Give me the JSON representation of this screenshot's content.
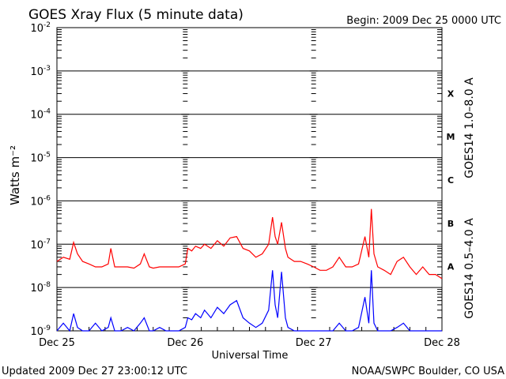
{
  "chart_data": {
    "type": "line",
    "title": "GOES Xray Flux (5 minute data)",
    "begin": "Begin:  2009 Dec 25 0000 UTC",
    "xlabel": "Universal Time",
    "ylabel": "Watts m⁻²",
    "y_scale": "log",
    "ylim": [
      1e-09,
      0.01
    ],
    "y_ticks": [
      {
        "base": "10",
        "exp": "-2"
      },
      {
        "base": "10",
        "exp": "-3"
      },
      {
        "base": "10",
        "exp": "-4"
      },
      {
        "base": "10",
        "exp": "-5"
      },
      {
        "base": "10",
        "exp": "-6"
      },
      {
        "base": "10",
        "exp": "-7"
      },
      {
        "base": "10",
        "exp": "-8"
      },
      {
        "base": "10",
        "exp": "-9"
      }
    ],
    "x_range_days": [
      0,
      3
    ],
    "x_ticks": [
      "Dec 25",
      "Dec 26",
      "Dec 27",
      "Dec 28"
    ],
    "flare_classes": [
      "X",
      "M",
      "C",
      "B",
      "A"
    ],
    "grid": true,
    "series": [
      {
        "name": "GOES14 1.0–8.0 A",
        "color": "#ff0000",
        "x": [
          0.0,
          0.05,
          0.1,
          0.13,
          0.16,
          0.2,
          0.25,
          0.3,
          0.35,
          0.4,
          0.42,
          0.45,
          0.5,
          0.55,
          0.6,
          0.65,
          0.68,
          0.72,
          0.75,
          0.8,
          0.85,
          0.9,
          0.95,
          1.0,
          1.02,
          1.05,
          1.08,
          1.12,
          1.15,
          1.2,
          1.25,
          1.3,
          1.35,
          1.4,
          1.45,
          1.5,
          1.55,
          1.6,
          1.65,
          1.68,
          1.7,
          1.72,
          1.75,
          1.78,
          1.8,
          1.85,
          1.9,
          1.95,
          2.0,
          2.05,
          2.1,
          2.15,
          2.2,
          2.25,
          2.3,
          2.35,
          2.4,
          2.43,
          2.45,
          2.47,
          2.5,
          2.55,
          2.6,
          2.65,
          2.7,
          2.75,
          2.8,
          2.85,
          2.9,
          2.95,
          3.0
        ],
        "y": [
          4e-08,
          5e-08,
          4.5e-08,
          1.1e-07,
          6e-08,
          4e-08,
          3.5e-08,
          3e-08,
          3e-08,
          3.5e-08,
          8e-08,
          3e-08,
          3e-08,
          3e-08,
          2.8e-08,
          3.5e-08,
          6e-08,
          3e-08,
          2.8e-08,
          3e-08,
          3e-08,
          3e-08,
          3e-08,
          3.5e-08,
          8e-08,
          7e-08,
          9e-08,
          8e-08,
          1e-07,
          8e-08,
          1.2e-07,
          9e-08,
          1.4e-07,
          1.5e-07,
          8e-08,
          7e-08,
          5e-08,
          6e-08,
          1e-07,
          4.2e-07,
          1.5e-07,
          1e-07,
          3.2e-07,
          8e-08,
          5e-08,
          4e-08,
          4e-08,
          3.5e-08,
          3e-08,
          2.5e-08,
          2.5e-08,
          3e-08,
          5e-08,
          3e-08,
          3e-08,
          3.5e-08,
          1.5e-07,
          5e-08,
          6.5e-07,
          6e-08,
          3e-08,
          2.5e-08,
          2e-08,
          4e-08,
          5e-08,
          3e-08,
          2e-08,
          3e-08,
          2e-08,
          2e-08,
          1.6e-08
        ]
      },
      {
        "name": "GOES14 0.5–4.0 A",
        "color": "#0000ff",
        "x": [
          0.0,
          0.05,
          0.1,
          0.13,
          0.16,
          0.2,
          0.25,
          0.3,
          0.35,
          0.4,
          0.42,
          0.45,
          0.5,
          0.55,
          0.6,
          0.65,
          0.68,
          0.72,
          0.75,
          0.8,
          0.85,
          0.9,
          0.95,
          1.0,
          1.02,
          1.05,
          1.08,
          1.12,
          1.15,
          1.2,
          1.25,
          1.3,
          1.35,
          1.4,
          1.45,
          1.5,
          1.55,
          1.6,
          1.65,
          1.68,
          1.7,
          1.72,
          1.75,
          1.78,
          1.8,
          1.85,
          1.9,
          1.95,
          2.0,
          2.05,
          2.1,
          2.15,
          2.2,
          2.25,
          2.3,
          2.35,
          2.4,
          2.43,
          2.45,
          2.47,
          2.5,
          2.55,
          2.6,
          2.65,
          2.7,
          2.75,
          2.8,
          2.85,
          2.9,
          2.95,
          3.0
        ],
        "y": [
          1e-09,
          1.5e-09,
          1e-09,
          2.5e-09,
          1.2e-09,
          1e-09,
          1e-09,
          1.5e-09,
          1e-09,
          1.2e-09,
          2e-09,
          1e-09,
          1e-09,
          1.2e-09,
          1e-09,
          1.5e-09,
          2e-09,
          1e-09,
          1e-09,
          1.2e-09,
          1e-09,
          1e-09,
          1e-09,
          1.2e-09,
          2e-09,
          1.8e-09,
          2.5e-09,
          2e-09,
          3e-09,
          2e-09,
          3.5e-09,
          2.5e-09,
          4e-09,
          5e-09,
          2e-09,
          1.5e-09,
          1.2e-09,
          1.5e-09,
          3e-09,
          2.5e-08,
          4e-09,
          2e-09,
          2.3e-08,
          2e-09,
          1.2e-09,
          1e-09,
          1e-09,
          1e-09,
          1e-09,
          1e-09,
          1e-09,
          1e-09,
          1.5e-09,
          1e-09,
          1e-09,
          1.2e-09,
          6e-09,
          1.5e-09,
          2.5e-08,
          1.5e-09,
          1e-09,
          1e-09,
          1e-09,
          1.2e-09,
          1.5e-09,
          1e-09,
          1e-09,
          1e-09,
          1e-09,
          1e-09,
          1e-09
        ]
      }
    ]
  },
  "footer": {
    "updated": "Updated 2009 Dec 27 23:00:12 UTC",
    "source": "NOAA/SWPC Boulder, CO USA"
  }
}
